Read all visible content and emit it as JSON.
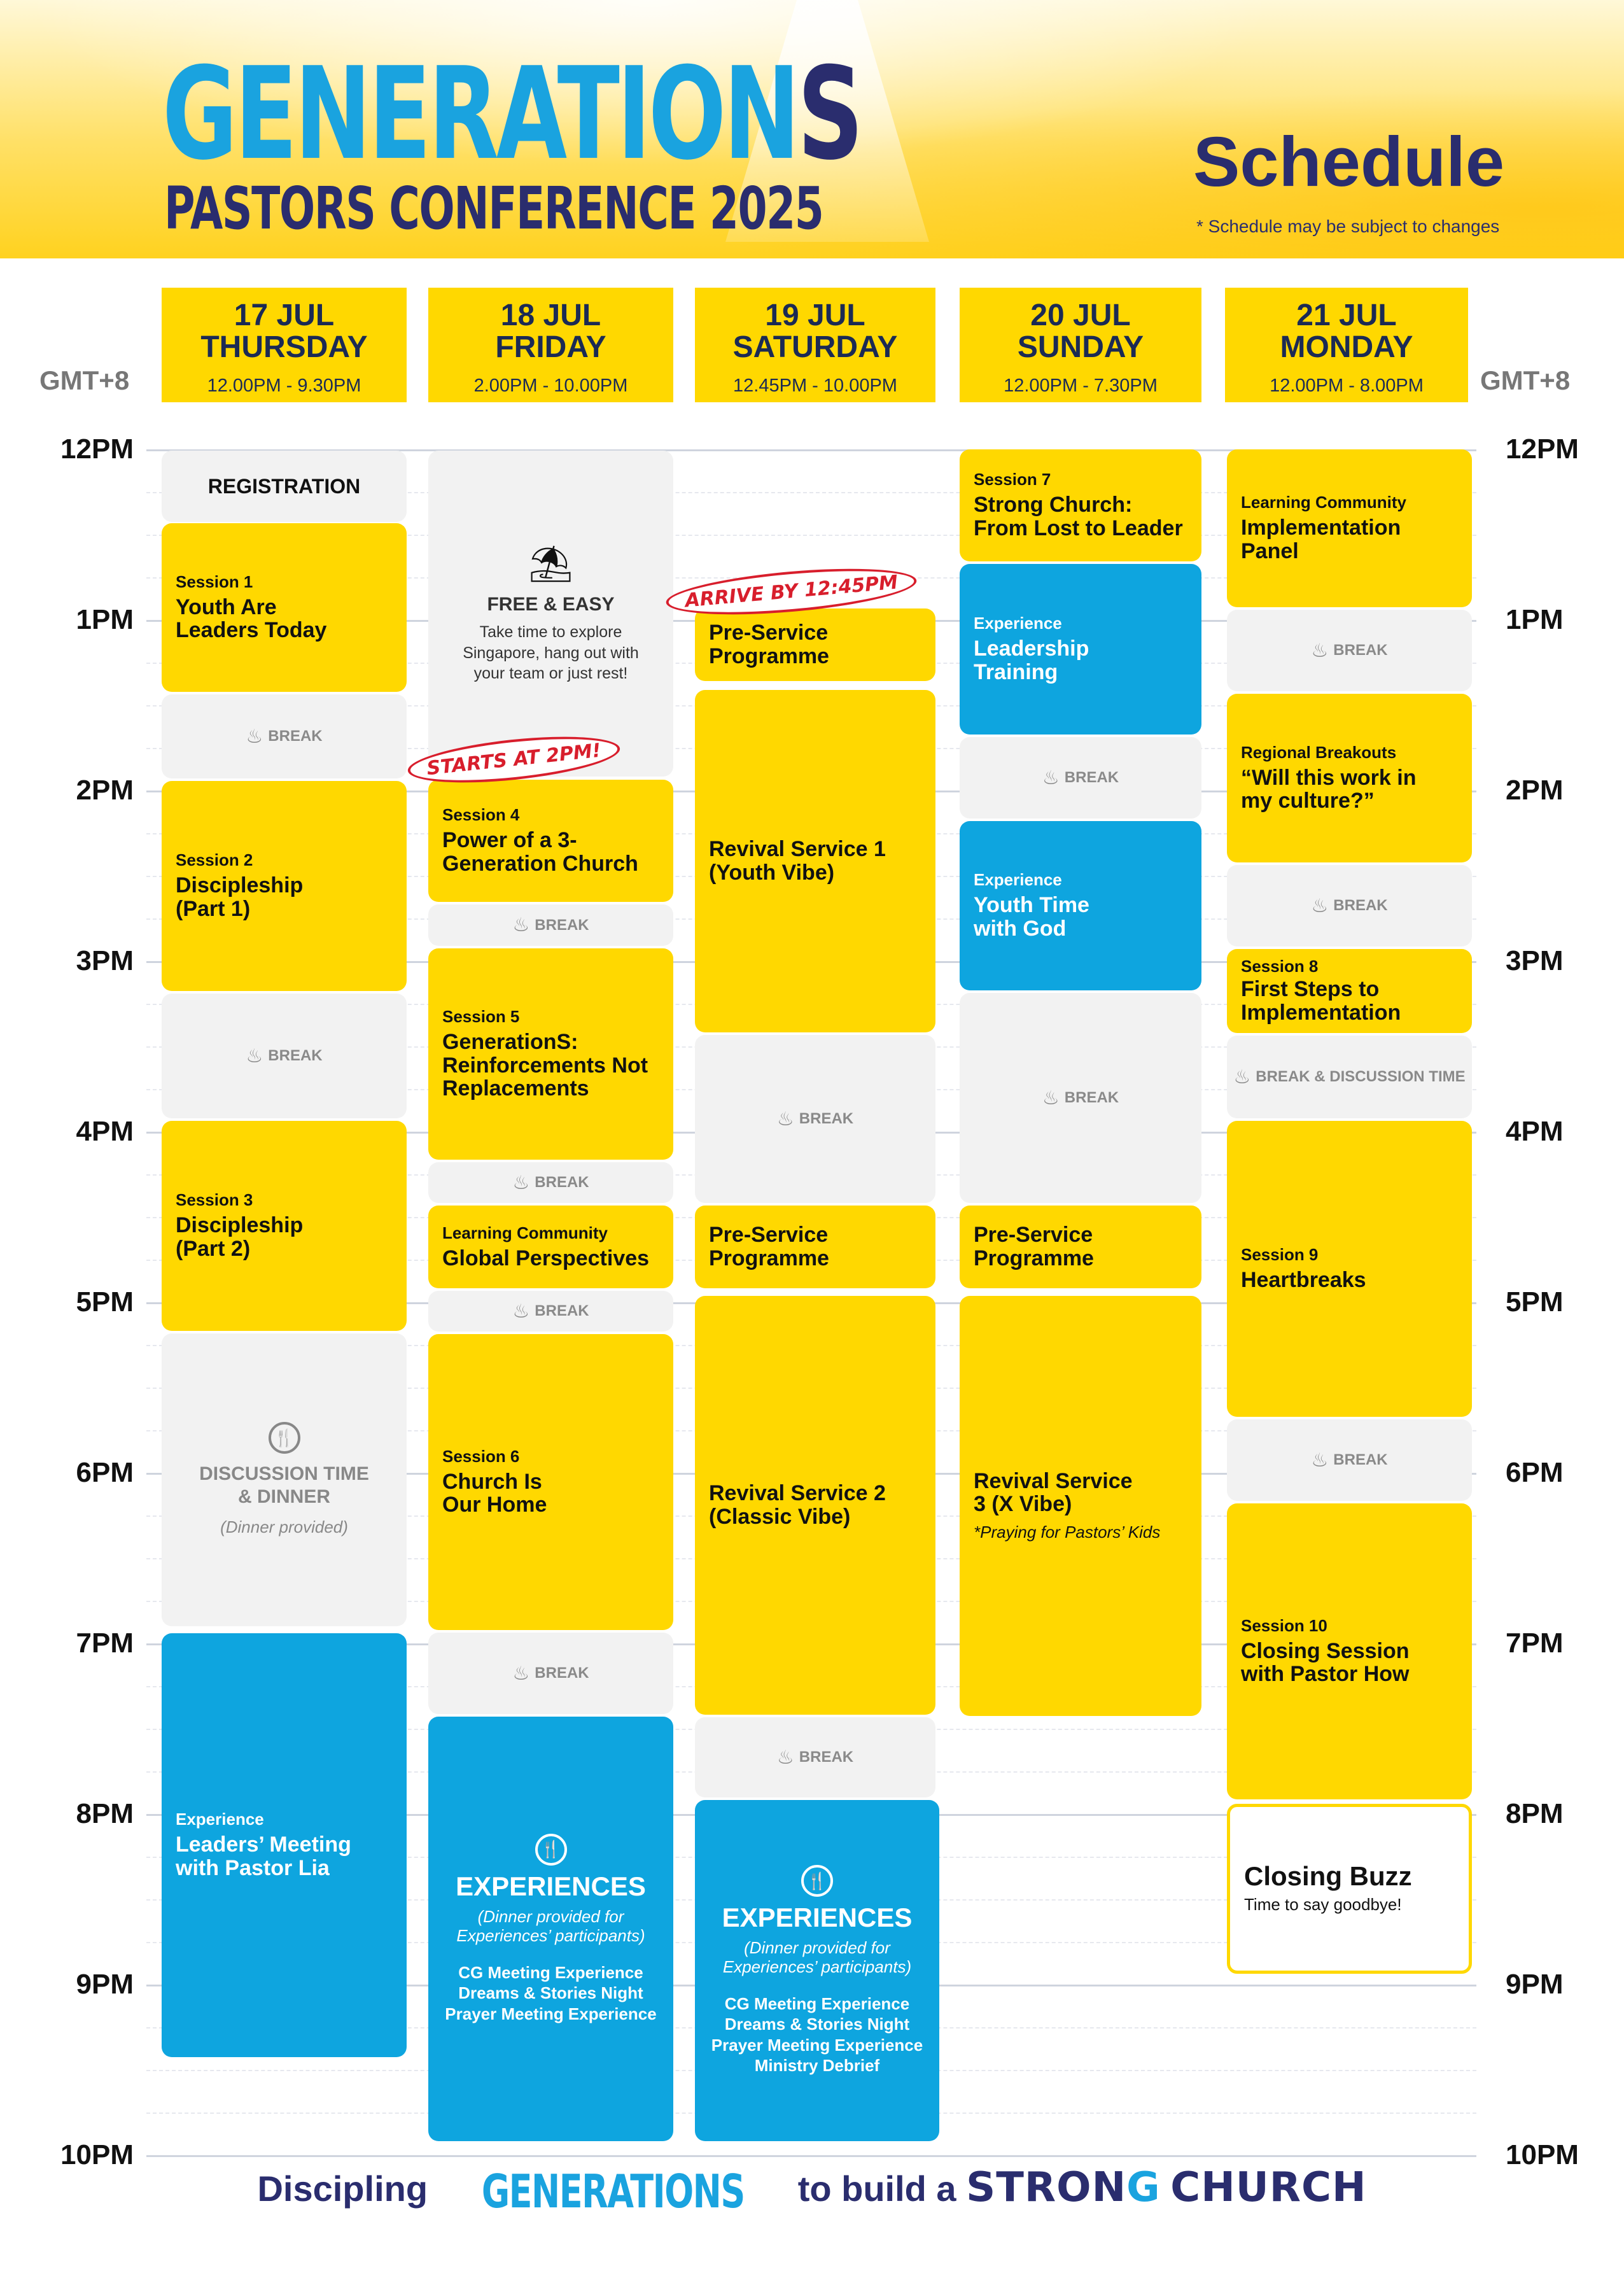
{
  "header": {
    "logo_line1": "GENERATION",
    "logo_line1_last": "S",
    "logo_line2": "PASTORS CONFERENCE 2025",
    "title": "Schedule",
    "note": "* Schedule may be subject to changes"
  },
  "timezone": "GMT+8",
  "times": [
    "12PM",
    "1PM",
    "2PM",
    "3PM",
    "4PM",
    "5PM",
    "6PM",
    "7PM",
    "8PM",
    "9PM",
    "10PM"
  ],
  "days": [
    {
      "date": "17 JUL",
      "name": "THURSDAY",
      "hours": "12.00PM - 9.30PM"
    },
    {
      "date": "18 JUL",
      "name": "FRIDAY",
      "hours": "2.00PM - 10.00PM"
    },
    {
      "date": "19 JUL",
      "name": "SATURDAY",
      "hours": "12.45PM - 10.00PM"
    },
    {
      "date": "20 JUL",
      "name": "SUNDAY",
      "hours": "12.00PM - 7.30PM"
    },
    {
      "date": "21 JUL",
      "name": "MONDAY",
      "hours": "12.00PM - 8.00PM"
    }
  ],
  "break_label": "BREAK",
  "break_discussion_label": "BREAK & DISCUSSION TIME",
  "stamps": {
    "arrive": "ARRIVE BY 12:45PM",
    "starts": "STARTS AT 2PM!"
  },
  "thu": {
    "registration": "REGISTRATION",
    "s1": {
      "label": "Session 1",
      "title": "Youth Are Leaders Today"
    },
    "s2": {
      "label": "Session 2",
      "title": "Discipleship (Part 1)"
    },
    "s3": {
      "label": "Session 3",
      "title": "Discipleship (Part 2)"
    },
    "dinner": {
      "title": "DISCUSSION TIME & DINNER",
      "sub": "(Dinner provided)"
    },
    "exp": {
      "label": "Experience",
      "title": "Leaders’ Meeting with Pastor Lia"
    }
  },
  "fri": {
    "free": {
      "title": "FREE & EASY",
      "desc": "Take time to explore Singapore, hang out with your team or just rest!"
    },
    "s4": {
      "label": "Session 4",
      "title": "Power of a 3-Generation Church"
    },
    "s5": {
      "label": "Session 5",
      "title": "GenerationS: Reinforcements Not Replacements"
    },
    "lc": {
      "label": "Learning Community",
      "title": "Global Perspectives"
    },
    "s6": {
      "label": "Session 6",
      "title": "Church Is Our Home"
    },
    "exp": {
      "title": "EXPERIENCES",
      "sub": "(Dinner provided for Experiences’ participants)",
      "items": [
        "CG Meeting Experience",
        "Dreams & Stories Night",
        "Prayer Meeting Experience"
      ]
    }
  },
  "sat": {
    "pre1": "Pre-Service Programme",
    "rev1": "Revival Service 1 (Youth Vibe)",
    "pre2": "Pre-Service Programme",
    "rev2": "Revival Service 2 (Classic Vibe)",
    "exp": {
      "title": "EXPERIENCES",
      "sub": "(Dinner provided for Experiences’ participants)",
      "items": [
        "CG Meeting Experience",
        "Dreams & Stories Night",
        "Prayer Meeting Experience",
        "Ministry Debrief"
      ]
    }
  },
  "sun": {
    "s7": {
      "label": "Session 7",
      "title": "Strong Church: From Lost to Leader"
    },
    "exp1": {
      "label": "Experience",
      "title": "Leadership Training"
    },
    "exp2": {
      "label": "Experience",
      "title": "Youth Time with God"
    },
    "pre": "Pre-Service Programme",
    "rev3": {
      "title": "Revival Service 3 (X Vibe)",
      "sub": "*Praying for Pastors’ Kids"
    }
  },
  "mon": {
    "lc": {
      "label": "Learning Community",
      "title": "Implementation Panel"
    },
    "rb": {
      "label": "Regional Breakouts",
      "title": "“Will this work in my culture?”"
    },
    "s8": {
      "label": "Session 8",
      "title": "First Steps to Implementation"
    },
    "s9": {
      "label": "Session 9",
      "title": "Heartbreaks"
    },
    "s10": {
      "label": "Session 10",
      "title": "Closing Session with Pastor How"
    },
    "buzz": {
      "title": "Closing Buzz",
      "sub": "Time to say goodbye!"
    }
  },
  "footer": {
    "pre": "Discipling",
    "gen": "GENERATIONS",
    "mid": "to build a",
    "strong_a": "STRON",
    "strong_b": "G",
    "church": "CHURCH"
  },
  "colors": {
    "yellow": "#ffd800",
    "blue": "#0ea5df",
    "navy": "#2a2d6e",
    "grey": "#f2f2f2",
    "red": "#d81e2c"
  }
}
